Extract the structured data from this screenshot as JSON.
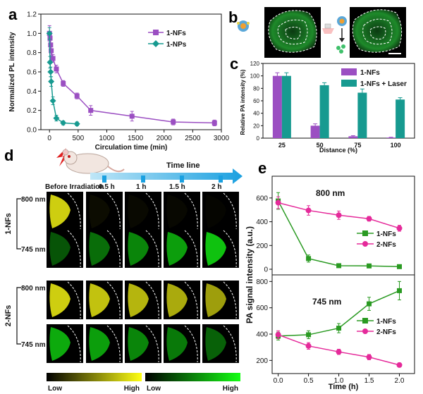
{
  "panels": {
    "a": "a",
    "b": "b",
    "c": "c",
    "d": "d",
    "e": "e"
  },
  "colors": {
    "purple": "#9b4fc2",
    "teal": "#179a90",
    "green": "#2a9a22",
    "magenta": "#e52a9a"
  },
  "chart_data": [
    {
      "id": "a",
      "type": "line",
      "xlabel": "Circulation time (min)",
      "ylabel": "Normalized PL intensity",
      "xlim": [
        -150,
        3000
      ],
      "ylim": [
        0,
        1.2
      ],
      "xticks": [
        0,
        500,
        1000,
        1500,
        2000,
        2500,
        3000
      ],
      "yticks": [
        0.0,
        0.2,
        0.4,
        0.6,
        0.8,
        1.0,
        1.2
      ],
      "legend_position": "top-right",
      "series": [
        {
          "name": "1-NFs",
          "color": "#9b4fc2",
          "marker": "square",
          "x": [
            0,
            10,
            20,
            30,
            60,
            120,
            240,
            480,
            720,
            1440,
            2160,
            2880
          ],
          "y": [
            1.0,
            0.95,
            0.88,
            0.82,
            0.74,
            0.63,
            0.48,
            0.35,
            0.2,
            0.14,
            0.08,
            0.07
          ],
          "err": [
            0.08,
            0.05,
            0.05,
            0.05,
            0.04,
            0.04,
            0.03,
            0.03,
            0.05,
            0.05,
            0.03,
            0.03
          ]
        },
        {
          "name": "1-NPs",
          "color": "#179a90",
          "marker": "diamond",
          "x": [
            0,
            10,
            20,
            30,
            60,
            120,
            240,
            480
          ],
          "y": [
            1.0,
            0.7,
            0.6,
            0.5,
            0.3,
            0.12,
            0.07,
            0.06
          ],
          "err": [
            0.06,
            0.06,
            0.05,
            0.05,
            0.04,
            0.03,
            0.02,
            0.02
          ]
        }
      ]
    },
    {
      "id": "c",
      "type": "bar",
      "xlabel": "Distance (%)",
      "ylabel": "Relative PA intensity (%)",
      "categories": [
        "25",
        "50",
        "75",
        "100"
      ],
      "ylim": [
        0,
        120
      ],
      "yticks": [
        0,
        20,
        40,
        60,
        80,
        100,
        120
      ],
      "legend_position": "top-right",
      "series": [
        {
          "name": "1-NFs",
          "color": "#9b4fc2",
          "values": [
            100,
            20,
            3,
            1
          ],
          "err": [
            5,
            3,
            1,
            0.5
          ]
        },
        {
          "name": "1-NFs + Laser",
          "color": "#179a90",
          "values": [
            100,
            85,
            73,
            62
          ],
          "err": [
            5,
            4,
            6,
            3
          ]
        }
      ]
    },
    {
      "id": "e_top",
      "type": "line",
      "ylim": [
        0,
        700
      ],
      "yticks": [
        0,
        200,
        400,
        600
      ],
      "annotation": "800 nm",
      "legend_position": "center-right",
      "series": [
        {
          "name": "1-NFs",
          "color": "#2a9a22",
          "marker": "square",
          "x": [
            0,
            0.5,
            1.0,
            1.5,
            2.0
          ],
          "y": [
            575,
            90,
            30,
            28,
            22
          ],
          "err": [
            70,
            30,
            5,
            5,
            5
          ]
        },
        {
          "name": "2-NFs",
          "color": "#e52a9a",
          "marker": "circle",
          "x": [
            0,
            0.5,
            1.0,
            1.5,
            2.0
          ],
          "y": [
            560,
            495,
            455,
            425,
            345
          ],
          "err": [
            50,
            40,
            35,
            20,
            25
          ]
        }
      ]
    },
    {
      "id": "e_bottom",
      "type": "line",
      "xlabel": "Time (h)",
      "ylabel": "PA signal intensity (a.u.)",
      "xlim": [
        -0.1,
        2.25
      ],
      "ylim": [
        100,
        850
      ],
      "xticks": [
        0.0,
        0.5,
        1.0,
        1.5,
        2.0
      ],
      "yticks": [
        200,
        400,
        600,
        800
      ],
      "annotation": "745 nm",
      "legend_position": "center-right",
      "series": [
        {
          "name": "1-NFs",
          "color": "#2a9a22",
          "marker": "square",
          "x": [
            0,
            0.5,
            1.0,
            1.5,
            2.0
          ],
          "y": [
            385,
            395,
            445,
            630,
            730
          ],
          "err": [
            30,
            30,
            35,
            50,
            70
          ]
        },
        {
          "name": "2-NFs",
          "color": "#e52a9a",
          "marker": "circle",
          "x": [
            0,
            0.5,
            1.0,
            1.5,
            2.0
          ],
          "y": [
            395,
            310,
            265,
            225,
            165
          ],
          "err": [
            30,
            25,
            20,
            20,
            15
          ]
        }
      ]
    }
  ],
  "panel_d": {
    "timeline_label": "Time line",
    "time_points": [
      "Before Irradiation",
      "0.5 h",
      "1 h",
      "1.5 h",
      "2 h"
    ],
    "row_groups": [
      {
        "label": "1-NFs",
        "rows": [
          {
            "wavelength": "800 nm",
            "palette": "yellow",
            "intensity": [
              0.85,
              0.05,
              0.04,
              0.03,
              0.02
            ]
          },
          {
            "wavelength": "745 nm",
            "palette": "green",
            "intensity": [
              0.35,
              0.45,
              0.55,
              0.65,
              0.8
            ]
          }
        ]
      },
      {
        "label": "2-NFs",
        "rows": [
          {
            "wavelength": "800 nm",
            "palette": "yellow",
            "intensity": [
              0.85,
              0.8,
              0.75,
              0.7,
              0.65
            ]
          },
          {
            "wavelength": "745 nm",
            "palette": "green",
            "intensity": [
              0.7,
              0.65,
              0.55,
              0.5,
              0.4
            ]
          }
        ]
      }
    ],
    "colorbars": [
      {
        "low": "Low",
        "high": "High",
        "palette": "yellow"
      },
      {
        "low": "Low",
        "high": "High",
        "palette": "green"
      }
    ]
  }
}
